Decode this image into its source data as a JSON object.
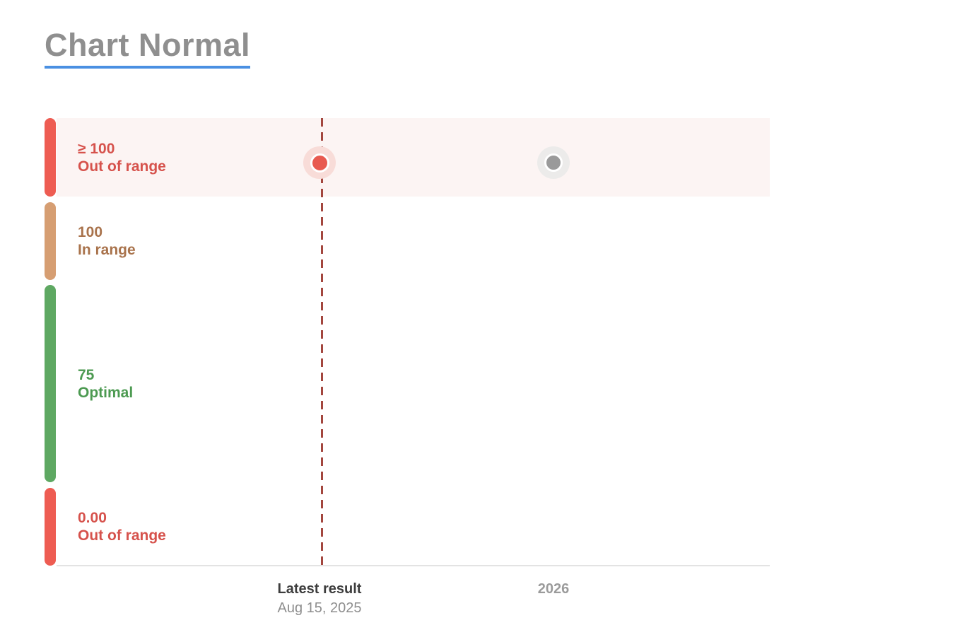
{
  "title": "Chart Normal",
  "colors": {
    "accent_underline": "#4a90e2",
    "title_text": "#8f8f8f",
    "out_of_range_red": "#ee5c52",
    "out_of_range_text": "#d6524c",
    "out_of_range_band_bg": "#fcf4f3",
    "in_range_tan": "#d69e72",
    "in_range_text": "#a9734c",
    "optimal_green": "#5ea862",
    "optimal_text": "#4c9a51",
    "reference_line": "#a3463e",
    "latest_point": "#e85a50",
    "latest_point_halo": "#f8dcd8",
    "future_point": "#9a9a9a",
    "future_point_halo": "#ecebea",
    "axis_line": "#e3e3e3"
  },
  "chart_data": {
    "type": "scatter",
    "title": "Chart Normal",
    "bands": [
      {
        "value": "≥ 100",
        "label": "Out of range",
        "status": "out_of_range_high",
        "bar_color": "#ee5c52",
        "text_color": "#d6524c",
        "bg_color": "#fcf4f3",
        "highlighted": true
      },
      {
        "value": "100",
        "label": "In range",
        "status": "in_range",
        "bar_color": "#d69e72",
        "text_color": "#a9734c",
        "bg_color": "transparent",
        "highlighted": false
      },
      {
        "value": "75",
        "label": "Optimal",
        "status": "optimal",
        "bar_color": "#5ea862",
        "text_color": "#4c9a51",
        "bg_color": "transparent",
        "highlighted": false
      },
      {
        "value": "0.00",
        "label": "Out of range",
        "status": "out_of_range_low",
        "bar_color": "#ee5c52",
        "text_color": "#d6524c",
        "bg_color": "transparent",
        "highlighted": false
      }
    ],
    "points": [
      {
        "x_label": "Latest result",
        "date": "Aug 15, 2025",
        "band": "out_of_range_high",
        "band_value": "≥ 100",
        "color": "#e85a50",
        "halo_color": "#f8dcd8"
      },
      {
        "x_label": "2026",
        "band": "out_of_range_high",
        "band_value": "≥ 100",
        "color": "#9a9a9a",
        "halo_color": "#ecebea"
      }
    ],
    "reference_line": {
      "x_label": "Latest result",
      "style": "dashed",
      "color": "#a3463e"
    },
    "x_axis": {
      "ticks": [
        {
          "label": "Latest result",
          "sublabel": "Aug 15, 2025"
        },
        {
          "label": "2026",
          "sublabel": ""
        }
      ]
    },
    "legend": "none",
    "grid": "off"
  }
}
